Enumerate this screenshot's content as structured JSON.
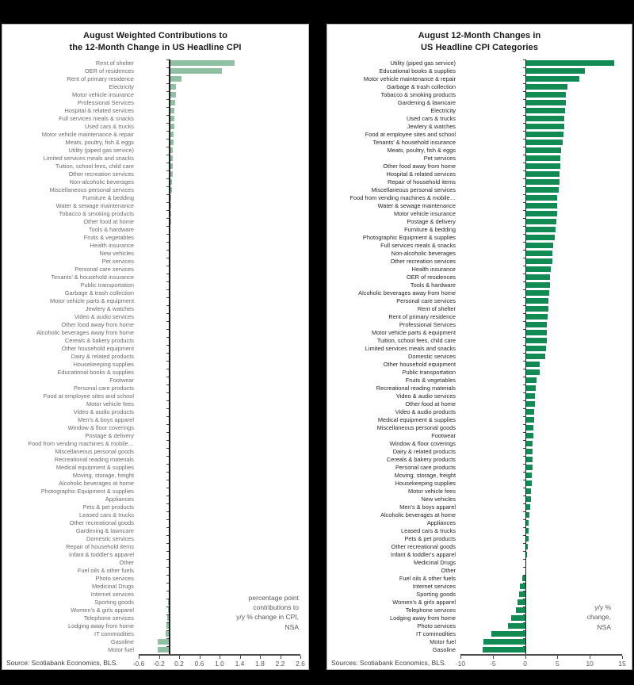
{
  "page": {
    "background": "#000000",
    "panel_background": "#ffffff"
  },
  "chart_data": [
    {
      "type": "bar",
      "orientation": "horizontal",
      "title": "August Weighted Contributions to\nthe 12-Month Change in US Headline CPI",
      "note": "percentage point\ncontributions to\ny/y % change in CPI,\nNSA",
      "source": "Source: Scotiabank Economics, BLS.",
      "bar_color": "#8FC0A2",
      "grid": false,
      "xlim": [
        -0.6,
        2.6
      ],
      "tick_values": [
        -0.6,
        -0.2,
        0.2,
        0.6,
        1.0,
        1.4,
        1.8,
        2.2,
        2.6
      ],
      "tick_labels": [
        "-0.6",
        "-0.2",
        "0.2",
        "0.6",
        "1.0",
        "1.4",
        "1.8",
        "2.2",
        "2.6"
      ],
      "categories": [
        "Rent of shelter",
        "OER of residences",
        "Rent of  primary residence",
        "Electricity",
        "Motor vehicle insurance",
        "Professional Services",
        "Hospital & related services",
        "Full services meals & snacks",
        "Used cars & trucks",
        "Motor vehicle maintenance & repair",
        "Meats, poultry, fish & eggs",
        "Utility (piped gas service)",
        "Limited services meals and snacks",
        "Tuition, school fees, child care",
        "Other recreation services",
        "Non-alcoholic beverages",
        "Miscellaneous personal services",
        "Furniture & bedding",
        "Water & sewage maintenance",
        "Tobacco & smoking products",
        "Other food at home",
        "Tools & hardware",
        "Fruits & vegetables",
        "Health insurance",
        "New vehicles",
        "Pet services",
        "Personal care services",
        "Tenants' & household insurance",
        "Public transportation",
        "Garbage & trash collection",
        "Motor vehicle parts & equipment",
        "Jewlery & watches",
        "Video & audio services",
        "Other food away from home",
        "Alcoholic beverages away from home",
        "Cereals & bakery products",
        "Other household equipment",
        "Dairy & related products",
        "Housekeeping supplies",
        "Educational books & supplies",
        "Footwear",
        "Personal care products",
        "Food at employee sites and school",
        "Motor vehicle fees",
        "Video & audio products",
        "Men's & boys apparel",
        "Window & floor coverings",
        "Postage & delivery",
        "Food from vending machines & mobile…",
        "Miscellaneous personal goods",
        "Recreational reading materials",
        "Medical equipment & supplies",
        "Moving, storage, freight",
        "Alcoholic beverages at home",
        "Photographic Equipment & supplies",
        "Appliances",
        "Pets & pet products",
        "Leased cars & trucks",
        "Other recreational goods",
        "Gardening & lawncare",
        "Domestic services",
        "Repair of household items",
        "Infant & toddler's apparel",
        "Other",
        "Fuel oils & other fuels",
        "Photo services",
        "Medicinal Drugs",
        "Internet services",
        "Sporting goods",
        "Women's & girls apparel",
        "Telephone services",
        "Lodging away from home",
        "IT commodities",
        "Gasoline",
        "Motor fuel"
      ],
      "values": [
        1.3,
        1.05,
        0.25,
        0.14,
        0.13,
        0.12,
        0.11,
        0.1,
        0.1,
        0.09,
        0.09,
        0.08,
        0.08,
        0.07,
        0.07,
        0.06,
        0.06,
        0.05,
        0.05,
        0.04,
        0.04,
        0.03,
        0.03,
        0.03,
        0.02,
        0.02,
        0.02,
        0.02,
        0.02,
        0.02,
        0.01,
        0.01,
        0.01,
        0.01,
        0.01,
        0.01,
        0.01,
        0.01,
        0.01,
        0.01,
        0.01,
        0.01,
        0.0,
        0.0,
        0.0,
        0.0,
        0.0,
        0.0,
        0.0,
        0.0,
        0.0,
        0.0,
        0.0,
        0.0,
        0.0,
        0.0,
        0.0,
        0.0,
        0.0,
        0.0,
        0.0,
        0.0,
        0.0,
        -0.01,
        -0.01,
        -0.01,
        -0.01,
        -0.01,
        -0.02,
        -0.02,
        -0.03,
        -0.05,
        -0.06,
        -0.22,
        -0.22
      ]
    },
    {
      "type": "bar",
      "orientation": "horizontal",
      "title": "August 12-Month Changes in\nUS Headline CPI Categories",
      "note": "y/y %\nchange,\nNSA",
      "source": "Sources: Scotiabank Economics, BLS.",
      "bar_color": "#118A54",
      "grid": false,
      "xlim": [
        -10,
        15
      ],
      "tick_values": [
        -10,
        -5,
        0,
        5,
        10,
        15
      ],
      "tick_labels": [
        "-10",
        "-5",
        "0",
        "5",
        "10",
        "15"
      ],
      "categories": [
        "Utility (piped gas service)",
        "Educational books & supplies",
        "Motor vehicle maintenance & repair",
        "Garbage & trash collection",
        "Tobacco & smoking products",
        "Gardening & lawncare",
        "Electricity",
        "Used cars & trucks",
        "Jewlery & watches",
        "Food at employee sites and school",
        "Tenants' & household insurance",
        "Meats, poultry, fish & eggs",
        "Pet services",
        "Other food away from home",
        "Hospital & related services",
        "Repair of household items",
        "Miscellaneous personal services",
        "Food from vending machines & mobile…",
        "Water & sewage maintenance",
        "Motor vehicle insurance",
        "Postage & delivery",
        "Furniture & bedding",
        "Photographic Equipment & supplies",
        "Full services meals & snacks",
        "Non-alcoholic beverages",
        "Other recreation services",
        "Health insurance",
        "OER of residences",
        "Tools & hardware",
        "Alcoholic beverages away from home",
        "Personal care services",
        "Rent of shelter",
        "Rent of  primary residence",
        "Professional Services",
        "Motor vehicle parts & equipment",
        "Tuition, school fees, child care",
        "Limited services meals and snacks",
        "Domestic services",
        "Other household equipment",
        "Public transportation",
        "Fruits & vegetables",
        "Recreational reading materials",
        "Video & audio services",
        "Other food at home",
        "Video & audio products",
        "Medical equipment & supplies",
        "Miscellaneous personal goods",
        "Footwear",
        "Window & floor coverings",
        "Dairy & related products",
        "Cereals & bakery products",
        "Personal care products",
        "Moving, storage, freight",
        "Housekeeping supplies",
        "Motor vehicle fees",
        "New vehicles",
        "Men's & boys apparel",
        "Alcoholic beverages at home",
        "Appliances",
        "Leased cars & trucks",
        "Pets & pet products",
        "Other recreational goods",
        "Infant & toddler's apparel",
        "Medicinal Drugs",
        "Other",
        "Fuel oils & other fuels",
        "Internet services",
        "Sporting goods",
        "Women's & girls apparel",
        "Telephone services",
        "Lodging away from home",
        "Photo services",
        "IT commodities",
        "Motor fuel",
        "Gasoline"
      ],
      "values": [
        13.8,
        9.3,
        8.4,
        6.5,
        6.3,
        6.3,
        6.2,
        6.0,
        6.0,
        5.9,
        5.8,
        5.6,
        5.5,
        5.4,
        5.3,
        5.3,
        5.2,
        5.0,
        5.0,
        4.9,
        4.8,
        4.7,
        4.6,
        4.4,
        4.2,
        4.2,
        4.0,
        3.9,
        3.8,
        3.7,
        3.6,
        3.6,
        3.5,
        3.4,
        3.4,
        3.3,
        3.2,
        3.1,
        2.3,
        2.2,
        1.8,
        1.7,
        1.5,
        1.5,
        1.4,
        1.4,
        1.3,
        1.3,
        1.2,
        1.2,
        1.1,
        1.1,
        1.0,
        1.0,
        0.9,
        0.9,
        0.8,
        0.7,
        0.6,
        0.5,
        0.5,
        0.4,
        0.3,
        0.2,
        0.1,
        -0.4,
        -0.8,
        -0.9,
        -1.2,
        -1.4,
        -2.2,
        -2.7,
        -5.2,
        -6.5,
        -6.6
      ]
    }
  ]
}
